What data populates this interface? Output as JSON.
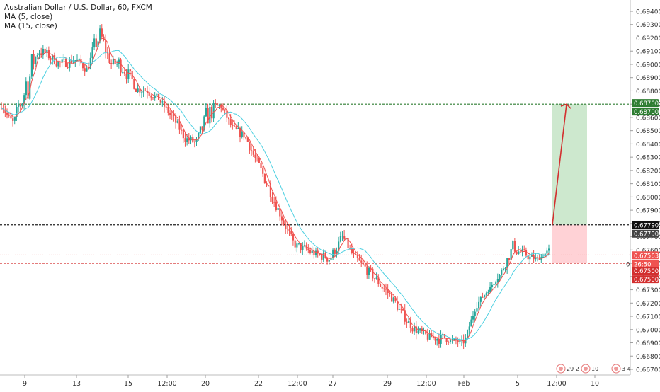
{
  "header": {
    "title": "Australian Dollar / U.S. Dollar, 60, FXCM",
    "indicators": [
      "MA (5, close)",
      "MA (15, close)"
    ]
  },
  "colors": {
    "bull": "#26a69a",
    "bear": "#ef5350",
    "ma5": "#ef5350",
    "ma15": "#4dd0e1",
    "target": "#2e7d32",
    "stop": "#d32f2f",
    "entry": "#222222",
    "profit_zone": "#c8e6c9",
    "loss_zone": "#ffcdd2",
    "current_price": "#ef9a9a"
  },
  "chart_data": {
    "type": "candlestick",
    "symbol": "AUDUSD",
    "interval": "60",
    "source": "FXCM",
    "ylim": [
      0.6665,
      0.6945
    ],
    "y_ticks": [
      "0.69400",
      "0.69300",
      "0.69200",
      "0.69100",
      "0.69000",
      "0.68900",
      "0.68800",
      "0.68700",
      "0.68600",
      "0.68500",
      "0.68400",
      "0.68300",
      "0.68200",
      "0.68100",
      "0.68000",
      "0.67900",
      "0.67800",
      "0.67700",
      "0.67600",
      "0.67500",
      "0.67400",
      "0.67300",
      "0.67200",
      "0.67100",
      "0.67000",
      "0.66900",
      "0.66800",
      "0.66700"
    ],
    "x_ticks": [
      "9",
      "13",
      "15",
      "12:00",
      "20",
      "22",
      "12:00",
      "27",
      "29",
      "12:00",
      "Feb",
      "5",
      "12:00",
      "10"
    ],
    "price_path": [
      [
        0.6867,
        0.6868
      ],
      [
        0.6852,
        0.6858
      ],
      [
        0.686,
        0.6912
      ],
      [
        0.6905,
        0.6918
      ],
      [
        0.69,
        0.691
      ],
      [
        0.6895,
        0.6905
      ],
      [
        0.69,
        0.6908
      ],
      [
        0.6892,
        0.69
      ],
      [
        0.691,
        0.6935
      ],
      [
        0.6895,
        0.6905
      ],
      [
        0.689,
        0.691
      ],
      [
        0.6878,
        0.6885
      ],
      [
        0.6875,
        0.6888
      ],
      [
        0.687,
        0.6875
      ],
      [
        0.6855,
        0.6865
      ],
      [
        0.684,
        0.685
      ],
      [
        0.6835,
        0.6845
      ],
      [
        0.685,
        0.6876
      ],
      [
        0.6866,
        0.6872
      ],
      [
        0.6845,
        0.6855
      ],
      [
        0.6842,
        0.685
      ],
      [
        0.682,
        0.683
      ],
      [
        0.68,
        0.6812
      ],
      [
        0.678,
        0.679
      ],
      [
        0.676,
        0.6768
      ],
      [
        0.6755,
        0.6765
      ],
      [
        0.6752,
        0.676
      ],
      [
        0.6748,
        0.676
      ],
      [
        0.6765,
        0.6775
      ],
      [
        0.6748,
        0.6758
      ],
      [
        0.674,
        0.675
      ],
      [
        0.673,
        0.674
      ],
      [
        0.672,
        0.673
      ],
      [
        0.6705,
        0.6715
      ],
      [
        0.6695,
        0.6705
      ],
      [
        0.669,
        0.6698
      ],
      [
        0.6688,
        0.67
      ],
      [
        0.669,
        0.6694
      ],
      [
        0.6688,
        0.6692
      ],
      [
        0.6716,
        0.6722
      ],
      [
        0.6728,
        0.6732
      ],
      [
        0.674,
        0.6745
      ],
      [
        0.6755,
        0.677
      ],
      [
        0.6752,
        0.676
      ],
      [
        0.675,
        0.6755
      ],
      [
        0.6758,
        0.6762
      ]
    ],
    "trade": {
      "entry": 0.6779,
      "target": 0.687,
      "stop": 0.675,
      "current": 0.67563
    },
    "price_labels": [
      "0.68700",
      "0.68700",
      "0.67790",
      "0.67790",
      "0.67563",
      "26:50",
      "0.67500",
      "0.67500"
    ],
    "countdown_prefix": "0",
    "events": [
      "29",
      "2",
      "10",
      "3",
      "4"
    ]
  }
}
